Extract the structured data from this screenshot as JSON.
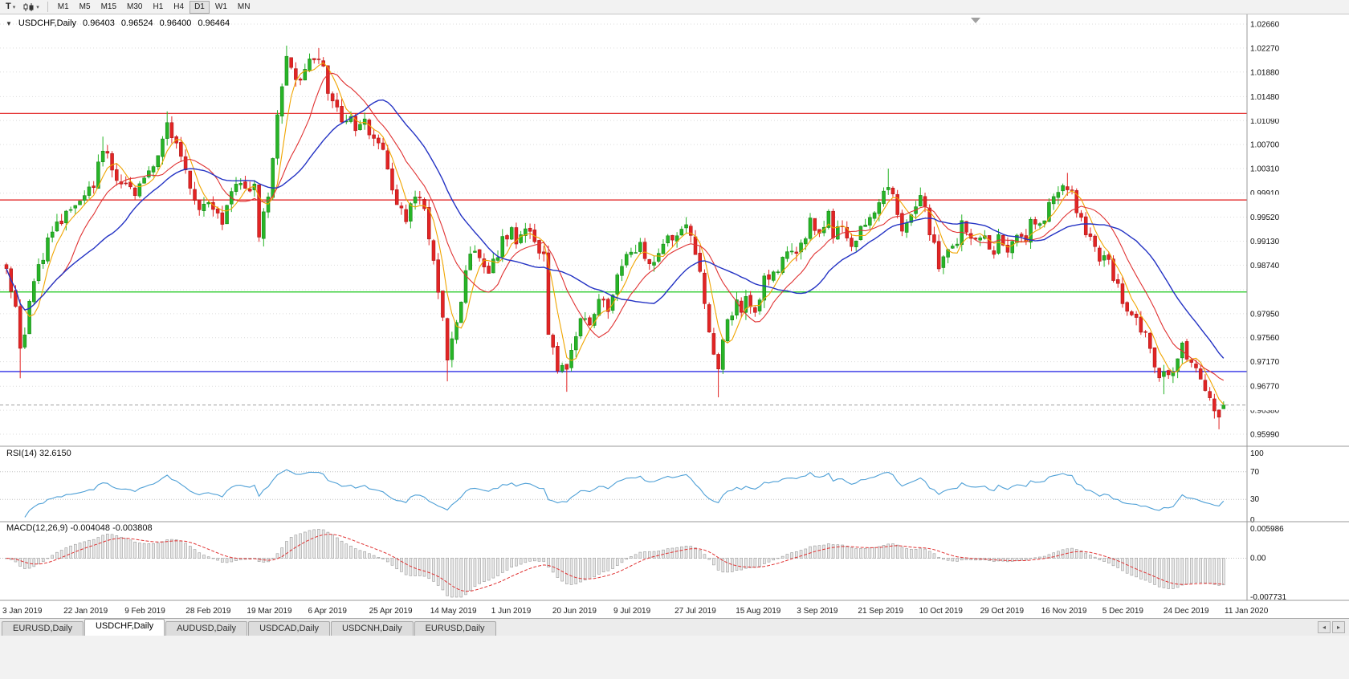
{
  "toolbar": {
    "text_tool_label": "T",
    "dropdown_glyph": "▾",
    "timeframes": [
      {
        "label": "M1",
        "active": false
      },
      {
        "label": "M5",
        "active": false
      },
      {
        "label": "M15",
        "active": false
      },
      {
        "label": "M30",
        "active": false
      },
      {
        "label": "H1",
        "active": false
      },
      {
        "label": "H4",
        "active": false
      },
      {
        "label": "D1",
        "active": true
      },
      {
        "label": "W1",
        "active": false
      },
      {
        "label": "MN",
        "active": false
      }
    ]
  },
  "chart_header": {
    "marker": "▼",
    "symbol": "USDCHF,Daily",
    "open": "0.96403",
    "high": "0.96524",
    "low": "0.96400",
    "close": "0.96464"
  },
  "chart_data": {
    "type": "candlestick",
    "symbol": "USDCHF",
    "timeframe": "Daily",
    "num_candles": 266,
    "y_axis": {
      "top": 1.0266,
      "bottom": 0.9599,
      "labels": [
        "1.02660",
        "1.02270",
        "1.01880",
        "1.01480",
        "1.01090",
        "1.00700",
        "1.00310",
        "0.99910",
        "0.99520",
        "0.99130",
        "0.98740",
        "0.98340",
        "0.97950",
        "0.97560",
        "0.97170",
        "0.96770",
        "0.96380",
        "0.95990"
      ]
    },
    "x_axis": {
      "labels": [
        "3 Jan 2019",
        "22 Jan 2019",
        "9 Feb 2019",
        "28 Feb 2019",
        "19 Mar 2019",
        "6 Apr 2019",
        "25 Apr 2019",
        "14 May 2019",
        "1 Jun 2019",
        "20 Jun 2019",
        "9 Jul 2019",
        "27 Jul 2019",
        "15 Aug 2019",
        "3 Sep 2019",
        "21 Sep 2019",
        "10 Oct 2019",
        "29 Oct 2019",
        "16 Nov 2019",
        "5 Dec 2019",
        "24 Dec 2019",
        "11 Jan 2020"
      ]
    },
    "price_path_anchors": [
      [
        0,
        0.9874
      ],
      [
        2,
        0.98
      ],
      [
        3,
        0.973
      ],
      [
        5,
        0.9809
      ],
      [
        7,
        0.9874
      ],
      [
        10,
        0.9927
      ],
      [
        13,
        0.9953
      ],
      [
        16,
        0.9979
      ],
      [
        19,
        1.0005
      ],
      [
        21,
        1.007
      ],
      [
        24,
        1.0005
      ],
      [
        27,
        1.0011
      ],
      [
        28,
        0.9992
      ],
      [
        30,
        1.0005
      ],
      [
        33,
        1.0044
      ],
      [
        35,
        1.0109
      ],
      [
        38,
        1.0057
      ],
      [
        40,
        0.9992
      ],
      [
        42,
        0.9953
      ],
      [
        44,
        0.9979
      ],
      [
        47,
        0.9933
      ],
      [
        49,
        0.9992
      ],
      [
        52,
        1.0005
      ],
      [
        54,
        0.9998
      ],
      [
        55,
        0.9927
      ],
      [
        57,
        0.9979
      ],
      [
        58,
        1.0044
      ],
      [
        59,
        1.012
      ],
      [
        61,
        1.0205
      ],
      [
        62,
        1.0188
      ],
      [
        64,
        1.0175
      ],
      [
        66,
        1.0201
      ],
      [
        68,
        1.0215
      ],
      [
        69,
        1.0188
      ],
      [
        71,
        1.0135
      ],
      [
        73,
        1.0116
      ],
      [
        75,
        1.0109
      ],
      [
        76,
        1.009
      ],
      [
        78,
        1.0109
      ],
      [
        80,
        1.0077
      ],
      [
        82,
        1.0064
      ],
      [
        83,
        1.0031
      ],
      [
        85,
        0.9972
      ],
      [
        87,
        0.9953
      ],
      [
        89,
        0.9979
      ],
      [
        90,
        0.9992
      ],
      [
        92,
        0.9927
      ],
      [
        93,
        0.9874
      ],
      [
        95,
        0.9783
      ],
      [
        96,
        0.9712
      ],
      [
        97,
        0.9744
      ],
      [
        99,
        0.9809
      ],
      [
        100,
        0.9874
      ],
      [
        102,
        0.99
      ],
      [
        104,
        0.9874
      ],
      [
        105,
        0.9855
      ],
      [
        106,
        0.9874
      ],
      [
        108,
        0.9914
      ],
      [
        110,
        0.9927
      ],
      [
        111,
        0.99
      ],
      [
        113,
        0.9927
      ],
      [
        115,
        0.9914
      ],
      [
        117,
        0.9887
      ],
      [
        118,
        0.9757
      ],
      [
        120,
        0.9712
      ],
      [
        122,
        0.9698
      ],
      [
        124,
        0.9757
      ],
      [
        125,
        0.9796
      ],
      [
        127,
        0.9783
      ],
      [
        129,
        0.9822
      ],
      [
        131,
        0.9796
      ],
      [
        133,
        0.9848
      ],
      [
        135,
        0.99
      ],
      [
        137,
        0.9887
      ],
      [
        138,
        0.9914
      ],
      [
        140,
        0.9874
      ],
      [
        142,
        0.99
      ],
      [
        144,
        0.9927
      ],
      [
        146,
        0.9914
      ],
      [
        148,
        0.994
      ],
      [
        150,
        0.99
      ],
      [
        152,
        0.9822
      ],
      [
        153,
        0.9757
      ],
      [
        155,
        0.9716
      ],
      [
        157,
        0.9783
      ],
      [
        159,
        0.9809
      ],
      [
        160,
        0.9796
      ],
      [
        161,
        0.9822
      ],
      [
        163,
        0.9796
      ],
      [
        165,
        0.9848
      ],
      [
        166,
        0.9861
      ],
      [
        168,
        0.9874
      ],
      [
        170,
        0.99
      ],
      [
        172,
        0.9887
      ],
      [
        173,
        0.9914
      ],
      [
        175,
        0.994
      ],
      [
        177,
        0.9927
      ],
      [
        179,
        0.9953
      ],
      [
        180,
        0.9927
      ],
      [
        182,
        0.994
      ],
      [
        184,
        0.9914
      ],
      [
        186,
        0.9927
      ],
      [
        188,
        0.9953
      ],
      [
        190,
        0.9979
      ],
      [
        192,
        1.0005
      ],
      [
        194,
        0.9966
      ],
      [
        195,
        0.9927
      ],
      [
        197,
        0.9953
      ],
      [
        199,
        0.9979
      ],
      [
        200,
        0.9966
      ],
      [
        201,
        0.9927
      ],
      [
        203,
        0.9874
      ],
      [
        205,
        0.99
      ],
      [
        207,
        0.9914
      ],
      [
        208,
        0.994
      ],
      [
        210,
        0.9927
      ],
      [
        213,
        0.9914
      ],
      [
        215,
        0.9887
      ],
      [
        216,
        0.9914
      ],
      [
        218,
        0.99
      ],
      [
        220,
        0.9927
      ],
      [
        222,
        0.9914
      ],
      [
        223,
        0.994
      ],
      [
        226,
        0.9953
      ],
      [
        228,
        0.9979
      ],
      [
        229,
        0.9992
      ],
      [
        231,
        1.0005
      ],
      [
        233,
        0.9966
      ],
      [
        235,
        0.9927
      ],
      [
        236,
        0.9914
      ],
      [
        238,
        0.9887
      ],
      [
        240,
        0.9874
      ],
      [
        242,
        0.9835
      ],
      [
        243,
        0.9822
      ],
      [
        245,
        0.9796
      ],
      [
        247,
        0.977
      ],
      [
        249,
        0.9744
      ],
      [
        250,
        0.9705
      ],
      [
        253,
        0.9692
      ],
      [
        255,
        0.9718
      ],
      [
        256,
        0.9744
      ],
      [
        258,
        0.9718
      ],
      [
        260,
        0.9692
      ],
      [
        262,
        0.9666
      ],
      [
        264,
        0.9627
      ],
      [
        265,
        0.9646
      ]
    ],
    "wick_extremes": {
      "lows": [
        [
          3,
          0.969
        ],
        [
          96,
          0.9685
        ],
        [
          122,
          0.9668
        ],
        [
          155,
          0.9659
        ],
        [
          252,
          0.9664
        ],
        [
          264,
          0.9607
        ]
      ],
      "highs": [
        [
          21,
          1.0083
        ],
        [
          35,
          1.0124
        ],
        [
          61,
          1.0231
        ],
        [
          68,
          1.0227
        ],
        [
          192,
          1.0031
        ],
        [
          231,
          1.0024
        ]
      ]
    },
    "last_candle": {
      "open": 0.96403,
      "high": 0.96524,
      "low": 0.964,
      "close": 0.96464
    },
    "horizontal_lines": [
      {
        "price": 1.01207,
        "label": "1.01207",
        "color": "#e01616"
      },
      {
        "price": 0.998,
        "label": "0.99800",
        "color": "#e01616"
      },
      {
        "price": 0.98303,
        "label": "0.98303",
        "color": "#00c000"
      },
      {
        "price": 0.97009,
        "label": "0.97009",
        "color": "#0000e0"
      }
    ],
    "current_price_tag": {
      "value": 0.96464,
      "label": "0.96464",
      "bg": "#454545"
    },
    "colors": {
      "bull": "#27b427",
      "bull_border": "#0e7c0e",
      "bear": "#e22424",
      "bear_border": "#a31111",
      "ma_fast": "#f0a500",
      "ma_mid": "#e03232",
      "ma_slow": "#2433c4",
      "rsi": "#4d9fd6",
      "macd_hist_fill": "#e8e8e8",
      "macd_hist_stroke": "#9a9a9a",
      "macd_signal": "#e03232",
      "grid": "#dcdcdc",
      "separator": "#9a9a9a",
      "axis_text": "#111111"
    },
    "indicators": {
      "rsi": {
        "label": "RSI(14) 32.6150",
        "period": 14,
        "current": 32.615,
        "scale_labels": [
          "100",
          "70",
          "30",
          "0"
        ],
        "scale_values": [
          100,
          70,
          30,
          0
        ],
        "upper_level": 70,
        "lower_level": 30
      },
      "macd": {
        "label": "MACD(12,26,9) -0.004048 -0.003808",
        "fast": 12,
        "slow": 26,
        "signal": 9,
        "current_macd": -0.004048,
        "current_signal": -0.003808,
        "scale_labels": [
          "0.005986",
          "0.00",
          "-0.007731"
        ],
        "scale_top": 0.005986,
        "scale_bottom": -0.007731
      }
    }
  },
  "tabs": {
    "items": [
      {
        "label": "EURUSD,Daily",
        "active": false
      },
      {
        "label": "USDCHF,Daily",
        "active": true
      },
      {
        "label": "AUDUSD,Daily",
        "active": false
      },
      {
        "label": "USDCAD,Daily",
        "active": false
      },
      {
        "label": "USDCNH,Daily",
        "active": false
      },
      {
        "label": "EURUSD,Daily",
        "active": false
      }
    ],
    "scroll_left_glyph": "◂",
    "scroll_right_glyph": "▸"
  }
}
